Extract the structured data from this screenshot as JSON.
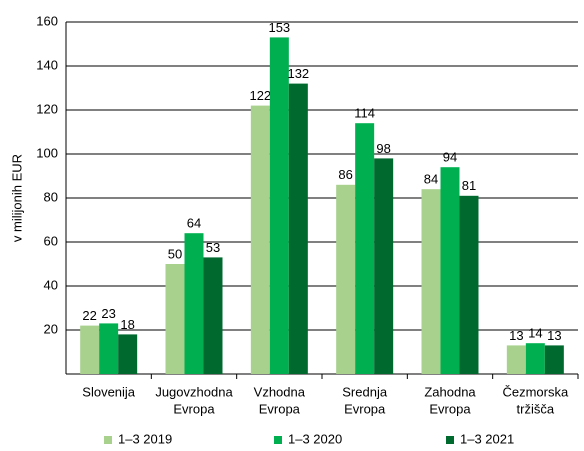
{
  "chart_data": {
    "type": "bar",
    "y_label": "v milijonih EUR",
    "categories": [
      [
        "Slovenija"
      ],
      [
        "Jugovzhodna",
        "Evropa"
      ],
      [
        "Vzhodna",
        "Evropa"
      ],
      [
        "Srednja",
        "Evropa"
      ],
      [
        "Zahodna",
        "Evropa"
      ],
      [
        "Čezmorska",
        "tržišča"
      ]
    ],
    "series": [
      {
        "name": "1–3 2019",
        "color": "#a9d18e",
        "values": [
          22,
          50,
          122,
          86,
          84,
          13
        ]
      },
      {
        "name": "1–3 2020",
        "color": "#00b050",
        "values": [
          23,
          64,
          153,
          114,
          94,
          14
        ]
      },
      {
        "name": "1–3 2021",
        "color": "#006a2e",
        "values": [
          18,
          53,
          132,
          98,
          81,
          13
        ]
      }
    ],
    "ylim": [
      0,
      160
    ],
    "yticks": [
      20,
      40,
      60,
      80,
      100,
      120,
      140,
      160
    ],
    "grid": true,
    "legend": "bottom"
  }
}
